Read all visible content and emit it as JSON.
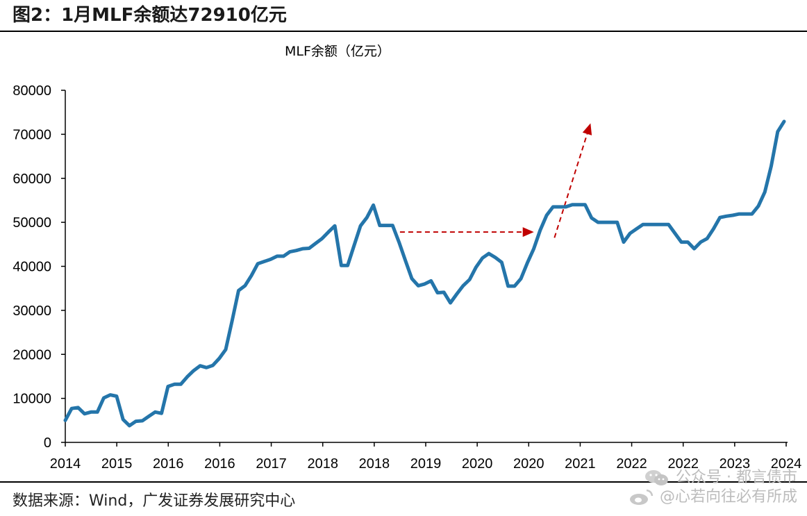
{
  "title": "图2：1月MLF余额达72910亿元",
  "source": "数据来源：Wind，广发证券发展研究中心",
  "watermark": {
    "line1": "公众号 · 都言债市",
    "line2": "@心若向往必有所成"
  },
  "colors": {
    "series": "#2475aa",
    "arrow": "#c00000",
    "axis": "#000000"
  },
  "chart_data": {
    "type": "line",
    "title": "图2：1月MLF余额达72910亿元",
    "ylabel": "MLF余额（亿元）",
    "xlabel": "",
    "ylim": [
      0,
      80000
    ],
    "yticks": [
      0,
      10000,
      20000,
      30000,
      40000,
      50000,
      60000,
      70000,
      80000
    ],
    "xtick_labels": [
      "2014",
      "2015",
      "2016",
      "2016",
      "2017",
      "2018",
      "2018",
      "2019",
      "2020",
      "2020",
      "2021",
      "2022",
      "2022",
      "2023",
      "2024"
    ],
    "grid": false,
    "legend": "none",
    "series": [
      {
        "values": [
          5000,
          7700,
          7900,
          6500,
          6900,
          6900,
          10100,
          10800,
          10500,
          5200,
          3800,
          4800,
          4900,
          5900,
          6900,
          6600,
          12700,
          13200,
          13200,
          14900,
          16300,
          17400,
          17000,
          17500,
          19100,
          21100,
          27700,
          34500,
          35600,
          37900,
          40600,
          41100,
          41600,
          42300,
          42300,
          43300,
          43600,
          44000,
          44100,
          45200,
          46300,
          47800,
          49200,
          40200,
          40200,
          44700,
          49200,
          51100,
          53900,
          49300,
          49300,
          49300,
          45500,
          41300,
          37200,
          35600,
          36000,
          36700,
          34000,
          34100,
          31700,
          33700,
          35600,
          37000,
          39800,
          41900,
          42900,
          42000,
          40900,
          35500,
          35500,
          37200,
          40800,
          44000,
          48200,
          51600,
          53500,
          53500,
          53500,
          54000,
          54000,
          54000,
          51000,
          50000,
          50000,
          50000,
          50000,
          45500,
          47500,
          48500,
          49500,
          49500,
          49500,
          49500,
          49500,
          47500,
          45500,
          45500,
          44000,
          45500,
          46300,
          48500,
          51100,
          51400,
          51600,
          51900,
          51900,
          51900,
          53700,
          56900,
          62800,
          70600,
          72910
        ]
      }
    ],
    "annotations": [
      {
        "type": "arrow",
        "style": "dashed",
        "direction": "horizontal",
        "from_year": 2020.5,
        "to_year": 2023.1,
        "level": 47800
      },
      {
        "type": "arrow",
        "style": "dashed",
        "direction": "up",
        "from_year": 2023.5,
        "to_year": 2024.2,
        "from_value": 46500,
        "to_value": 72500
      }
    ]
  }
}
